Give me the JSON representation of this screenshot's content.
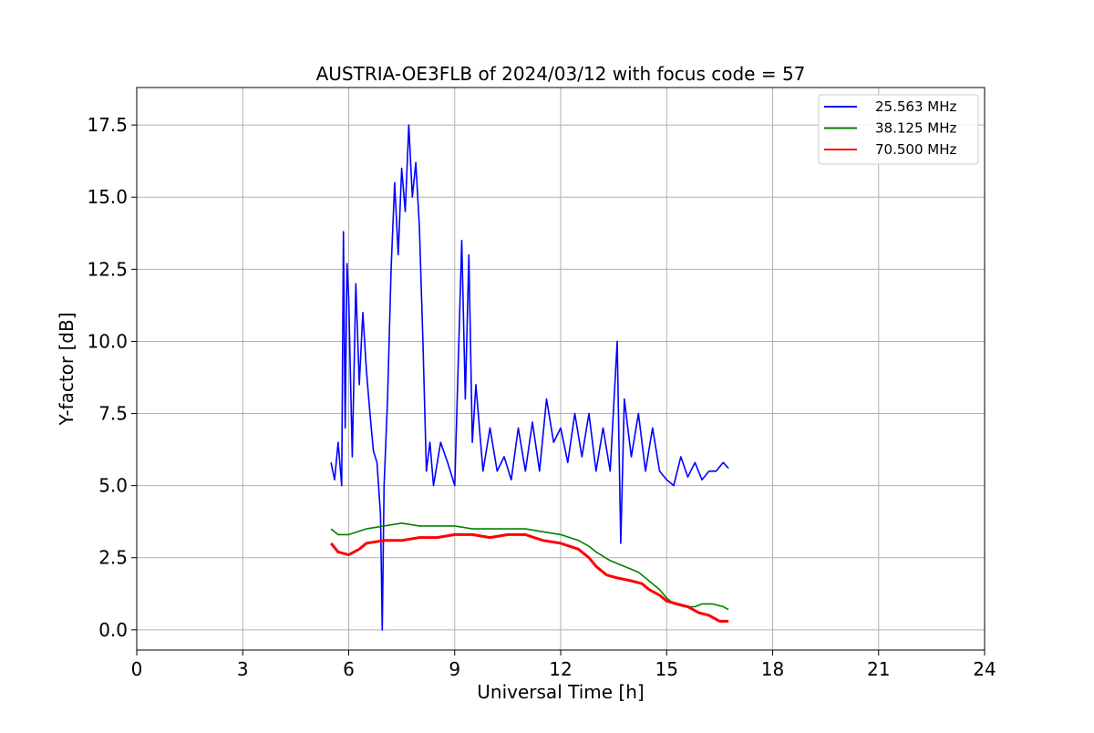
{
  "chart_data": {
    "type": "line",
    "title": "AUSTRIA-OE3FLB of 2024/03/12 with focus code = 57",
    "xlabel": "Universal Time [h]",
    "ylabel": "Y-factor [dB]",
    "xlim": [
      0,
      24
    ],
    "ylim": [
      -0.7,
      18.8
    ],
    "x_ticks": [
      0,
      3,
      6,
      9,
      12,
      15,
      18,
      21,
      24
    ],
    "x_tick_labels": [
      "0",
      "3",
      "6",
      "9",
      "12",
      "15",
      "18",
      "21",
      "24"
    ],
    "y_ticks": [
      0,
      2.5,
      5,
      7.5,
      10,
      12.5,
      15,
      17.5
    ],
    "y_tick_labels": [
      "0.0",
      "2.5",
      "5.0",
      "7.5",
      "10.0",
      "12.5",
      "15.0",
      "17.5"
    ],
    "grid": true,
    "legend_position": "top-right",
    "series": [
      {
        "name": "25.563 MHz",
        "color": "#0000ff",
        "x": [
          5.5,
          5.6,
          5.7,
          5.8,
          5.85,
          5.9,
          5.95,
          6.0,
          6.1,
          6.2,
          6.3,
          6.4,
          6.5,
          6.6,
          6.7,
          6.8,
          6.9,
          6.95,
          7.0,
          7.1,
          7.2,
          7.3,
          7.4,
          7.5,
          7.6,
          7.7,
          7.8,
          7.9,
          8.0,
          8.1,
          8.2,
          8.3,
          8.4,
          8.6,
          8.8,
          9.0,
          9.2,
          9.3,
          9.4,
          9.5,
          9.6,
          9.8,
          10.0,
          10.2,
          10.4,
          10.6,
          10.8,
          11.0,
          11.2,
          11.4,
          11.6,
          11.8,
          12.0,
          12.2,
          12.4,
          12.6,
          12.8,
          13.0,
          13.2,
          13.4,
          13.6,
          13.7,
          13.8,
          14.0,
          14.2,
          14.4,
          14.6,
          14.8,
          15.0,
          15.2,
          15.4,
          15.6,
          15.8,
          16.0,
          16.2,
          16.4,
          16.6,
          16.75
        ],
        "y": [
          5.8,
          5.2,
          6.5,
          5.0,
          13.8,
          7.0,
          12.7,
          11.5,
          6.0,
          12.0,
          8.5,
          11.0,
          9.0,
          7.5,
          6.2,
          5.8,
          4.0,
          0.0,
          5.0,
          8.0,
          12.5,
          15.5,
          13.0,
          16.0,
          14.5,
          17.5,
          15.0,
          16.2,
          14.0,
          10.0,
          5.5,
          6.5,
          5.0,
          6.5,
          5.8,
          5.0,
          13.5,
          8.0,
          13.0,
          6.5,
          8.5,
          5.5,
          7.0,
          5.5,
          6.0,
          5.2,
          7.0,
          5.5,
          7.2,
          5.5,
          8.0,
          6.5,
          7.0,
          5.8,
          7.5,
          6.0,
          7.5,
          5.5,
          7.0,
          5.5,
          10.0,
          3.0,
          8.0,
          6.0,
          7.5,
          5.5,
          7.0,
          5.5,
          5.2,
          5.0,
          6.0,
          5.3,
          5.8,
          5.2,
          5.5,
          5.5,
          5.8,
          5.6
        ]
      },
      {
        "name": "38.125 MHz",
        "color": "#008000",
        "x": [
          5.5,
          5.7,
          6.0,
          6.5,
          7.0,
          7.5,
          8.0,
          8.5,
          9.0,
          9.5,
          10.0,
          10.5,
          11.0,
          11.5,
          12.0,
          12.5,
          12.8,
          13.0,
          13.4,
          13.8,
          14.2,
          14.5,
          14.8,
          15.0,
          15.2,
          15.5,
          15.8,
          16.0,
          16.3,
          16.6,
          16.75
        ],
        "y": [
          3.5,
          3.3,
          3.3,
          3.5,
          3.6,
          3.7,
          3.6,
          3.6,
          3.6,
          3.5,
          3.5,
          3.5,
          3.5,
          3.4,
          3.3,
          3.1,
          2.9,
          2.7,
          2.4,
          2.2,
          2.0,
          1.7,
          1.4,
          1.1,
          0.9,
          0.8,
          0.8,
          0.9,
          0.9,
          0.8,
          0.7
        ]
      },
      {
        "name": "70.500 MHz",
        "color": "#ff0000",
        "x": [
          5.5,
          5.7,
          6.0,
          6.3,
          6.5,
          7.0,
          7.5,
          8.0,
          8.5,
          9.0,
          9.5,
          10.0,
          10.5,
          11.0,
          11.5,
          12.0,
          12.5,
          12.8,
          13.0,
          13.3,
          13.6,
          14.0,
          14.3,
          14.5,
          14.8,
          15.0,
          15.3,
          15.6,
          15.9,
          16.2,
          16.5,
          16.75
        ],
        "y": [
          3.0,
          2.7,
          2.6,
          2.8,
          3.0,
          3.1,
          3.1,
          3.2,
          3.2,
          3.3,
          3.3,
          3.2,
          3.3,
          3.3,
          3.1,
          3.0,
          2.8,
          2.5,
          2.2,
          1.9,
          1.8,
          1.7,
          1.6,
          1.4,
          1.2,
          1.0,
          0.9,
          0.8,
          0.6,
          0.5,
          0.3,
          0.3
        ]
      }
    ]
  }
}
